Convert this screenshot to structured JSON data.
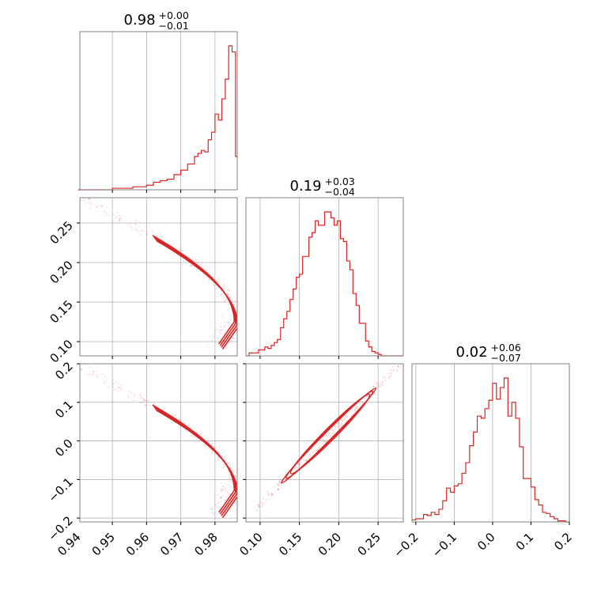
{
  "chart_data": {
    "type": "corner",
    "color": "#d62728",
    "parameters": [
      {
        "title": {
          "median": "0.98",
          "plus": "+0.00",
          "minus": "−0.01"
        },
        "range": [
          0.9405,
          0.9865
        ],
        "ticks": [
          0.94,
          0.95,
          0.96,
          0.97,
          0.98
        ],
        "tick_labels": [
          "0.94",
          "0.95",
          "0.96",
          "0.97",
          "0.98"
        ]
      },
      {
        "title": {
          "median": "0.19",
          "plus": "+0.03",
          "minus": "−0.04"
        },
        "range": [
          0.082,
          0.282
        ],
        "ticks": [
          0.1,
          0.15,
          0.2,
          0.25
        ],
        "tick_labels": [
          "0.10",
          "0.15",
          "0.20",
          "0.25"
        ]
      },
      {
        "title": {
          "median": "0.02",
          "plus": "+0.06",
          "minus": "−0.07"
        },
        "range": [
          -0.21,
          0.2
        ],
        "ticks": [
          -0.2,
          -0.1,
          0.0,
          0.1,
          0.2
        ],
        "tick_labels": [
          "−0.2",
          "−0.1",
          "0.0",
          "0.1",
          "0.2"
        ]
      }
    ],
    "histograms": [
      {
        "param": 0,
        "bin_edges": [
          0.94,
          0.95,
          0.952,
          0.956,
          0.958,
          0.96,
          0.962,
          0.964,
          0.966,
          0.968,
          0.97,
          0.972,
          0.974,
          0.975,
          0.976,
          0.977,
          0.978,
          0.979,
          0.98,
          0.981,
          0.982,
          0.983,
          0.984,
          0.985,
          0.986,
          0.9865
        ],
        "counts": [
          0,
          1,
          1,
          2,
          2,
          3,
          5,
          6,
          7,
          10,
          13,
          17,
          22,
          24,
          26,
          25,
          33,
          38,
          50,
          46,
          60,
          73,
          95,
          91,
          22
        ]
      },
      {
        "param": 1,
        "bin_edges": [
          0.082,
          0.086,
          0.09,
          0.094,
          0.098,
          0.102,
          0.106,
          0.11,
          0.114,
          0.118,
          0.122,
          0.126,
          0.13,
          0.134,
          0.138,
          0.142,
          0.146,
          0.15,
          0.154,
          0.158,
          0.162,
          0.166,
          0.17,
          0.174,
          0.178,
          0.182,
          0.186,
          0.19,
          0.194,
          0.198,
          0.202,
          0.206,
          0.21,
          0.214,
          0.218,
          0.222,
          0.226,
          0.23,
          0.234,
          0.238,
          0.242,
          0.246,
          0.25,
          0.254,
          0.258,
          0.262,
          0.266,
          0.27,
          0.274,
          0.278,
          0.282
        ],
        "counts": [
          0,
          2,
          2,
          2,
          4,
          4,
          6,
          5,
          7,
          9,
          11,
          19,
          25,
          30,
          38,
          45,
          53,
          55,
          67,
          67,
          80,
          83,
          91,
          88,
          88,
          97,
          97,
          93,
          88,
          91,
          79,
          77,
          64,
          58,
          42,
          34,
          22,
          22,
          10,
          6,
          3,
          2,
          1,
          0,
          0,
          0,
          0,
          0,
          0,
          0
        ]
      },
      {
        "param": 2,
        "bin_edges": [
          -0.21,
          -0.2,
          -0.19,
          -0.18,
          -0.17,
          -0.16,
          -0.15,
          -0.14,
          -0.13,
          -0.12,
          -0.11,
          -0.1,
          -0.09,
          -0.08,
          -0.07,
          -0.06,
          -0.05,
          -0.04,
          -0.03,
          -0.02,
          -0.01,
          0.0,
          0.01,
          0.02,
          0.03,
          0.04,
          0.05,
          0.06,
          0.07,
          0.08,
          0.09,
          0.1,
          0.11,
          0.12,
          0.13,
          0.14,
          0.15,
          0.16,
          0.17,
          0.18,
          0.19,
          0.2
        ],
        "counts": [
          2,
          3,
          3,
          7,
          6,
          9,
          7,
          12,
          20,
          32,
          28,
          34,
          36,
          46,
          56,
          72,
          85,
          100,
          98,
          107,
          115,
          131,
          116,
          127,
          136,
          100,
          113,
          98,
          71,
          41,
          41,
          33,
          21,
          16,
          9,
          8,
          5,
          3,
          1,
          1,
          0
        ]
      }
    ],
    "contour_pairs": [
      {
        "x_param": 0,
        "y_param": 1,
        "relation": "curved band: param1 falls from ~0.28 at 0.94 to ~0.10 near 0.985, bending back"
      },
      {
        "x_param": 0,
        "y_param": 2,
        "relation": "curved band: param2 falls from ~0.19 at 0.943 to ~-0.19 near 0.985, bending back"
      },
      {
        "x_param": 1,
        "y_param": 2,
        "relation": "near-linear positive correlation"
      }
    ]
  }
}
